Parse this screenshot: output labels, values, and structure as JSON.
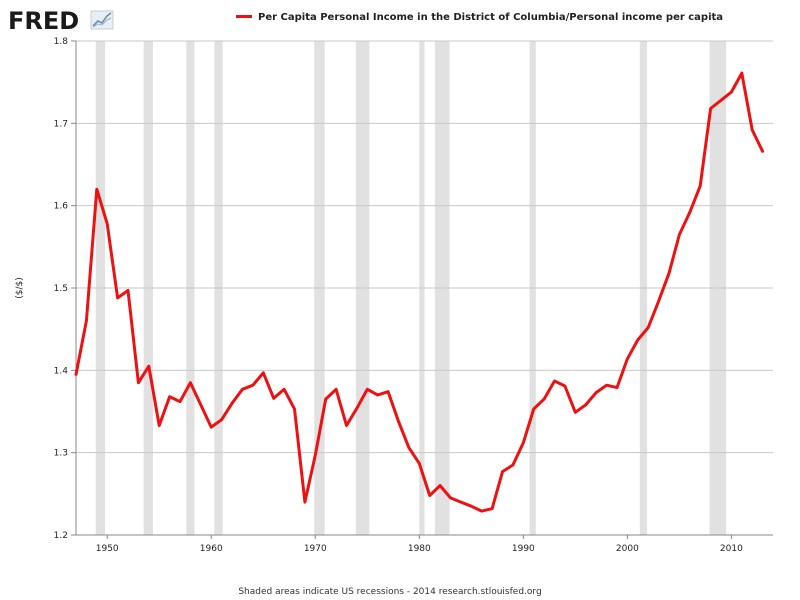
{
  "logo": {
    "text": "FRED"
  },
  "chart_data": {
    "type": "line",
    "title": "Per Capita Personal Income in the District of Columbia/Personal income per capita",
    "ylabel": "($/$)",
    "xlabel": "",
    "ylim": [
      1.2,
      1.8
    ],
    "xlim": [
      1947,
      2014
    ],
    "yticks": [
      "1.2",
      "1.3",
      "1.4",
      "1.5",
      "1.6",
      "1.7",
      "1.8"
    ],
    "xticks": [
      "1950",
      "1960",
      "1970",
      "1980",
      "1990",
      "2000",
      "2010"
    ],
    "grid": "horizontal",
    "legend": "top",
    "series": [
      {
        "name": "Per Capita Personal Income in the District of Columbia/Personal income per capita",
        "color": "#ee1111",
        "x": [
          1947,
          1948,
          1949,
          1950,
          1951,
          1952,
          1953,
          1954,
          1955,
          1956,
          1957,
          1958,
          1959,
          1960,
          1961,
          1962,
          1963,
          1964,
          1965,
          1966,
          1967,
          1968,
          1969,
          1970,
          1971,
          1972,
          1973,
          1974,
          1975,
          1976,
          1977,
          1978,
          1979,
          1980,
          1981,
          1982,
          1983,
          1984,
          1985,
          1986,
          1987,
          1988,
          1989,
          1990,
          1991,
          1992,
          1993,
          1994,
          1995,
          1996,
          1997,
          1998,
          1999,
          2000,
          2001,
          2002,
          2003,
          2004,
          2005,
          2006,
          2007,
          2008,
          2009,
          2010,
          2011,
          2012,
          2013
        ],
        "values": [
          1.395,
          1.46,
          1.62,
          1.578,
          1.488,
          1.497,
          1.385,
          1.405,
          1.333,
          1.368,
          1.362,
          1.385,
          1.358,
          1.331,
          1.34,
          1.36,
          1.377,
          1.382,
          1.397,
          1.366,
          1.377,
          1.353,
          1.24,
          1.297,
          1.365,
          1.377,
          1.333,
          1.354,
          1.377,
          1.37,
          1.374,
          1.338,
          1.306,
          1.287,
          1.248,
          1.26,
          1.245,
          1.24,
          1.235,
          1.229,
          1.232,
          1.277,
          1.285,
          1.312,
          1.353,
          1.365,
          1.387,
          1.381,
          1.349,
          1.358,
          1.373,
          1.382,
          1.379,
          1.414,
          1.437,
          1.452,
          1.484,
          1.518,
          1.565,
          1.592,
          1.624,
          1.718,
          1.728,
          1.738,
          1.761,
          1.692,
          1.666
        ]
      }
    ],
    "recessions": [
      [
        1948.9,
        1949.8
      ],
      [
        1953.5,
        1954.4
      ],
      [
        1957.6,
        1958.4
      ],
      [
        1960.3,
        1961.1
      ],
      [
        1969.9,
        1970.9
      ],
      [
        1973.9,
        1975.2
      ],
      [
        1980.0,
        1980.5
      ],
      [
        1981.5,
        1982.9
      ],
      [
        1990.6,
        1991.2
      ],
      [
        2001.2,
        2001.9
      ],
      [
        2007.9,
        2009.5
      ]
    ]
  },
  "footer": {
    "text": "Shaded areas indicate US recessions - 2014 research.stlouisfed.org"
  }
}
